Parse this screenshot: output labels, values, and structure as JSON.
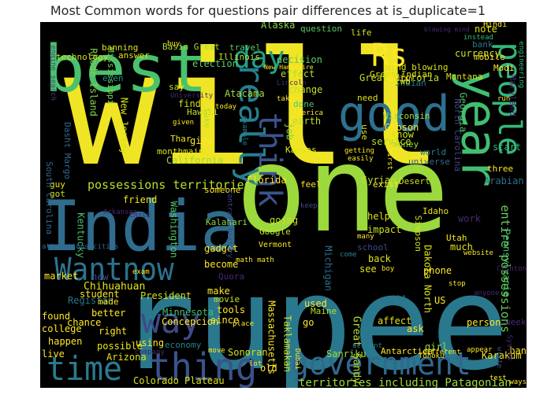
{
  "title": "Most Common words for questions pair differences at is_duplicate=1",
  "colors": {
    "background": "#000000",
    "palette": [
      "#fde725",
      "#b5de2b",
      "#6ece58",
      "#35b779",
      "#1f9e89",
      "#26828e",
      "#31688e",
      "#3e4989",
      "#482878",
      "#440154"
    ]
  },
  "words": [
    {
      "text": "will",
      "color": "#f0e524"
    },
    {
      "text": "one",
      "color": "#9bd93c"
    },
    {
      "text": "rupee",
      "color": "#2a788e"
    },
    {
      "text": "best",
      "color": "#4ac16d"
    },
    {
      "text": "India",
      "color": "#2f6c8e"
    },
    {
      "text": "good",
      "color": "#2c718e"
    },
    {
      "text": "government",
      "color": "#31688e"
    },
    {
      "text": "time",
      "color": "#2a7b8e"
    },
    {
      "text": "thing",
      "color": "#3b528b"
    },
    {
      "text": "Wantnow",
      "color": "#2c738e"
    },
    {
      "text": "way",
      "color": "#3e4a89"
    },
    {
      "text": "year",
      "color": "#42be71"
    },
    {
      "text": "people",
      "color": "#35b779"
    },
    {
      "text": "really",
      "color": "#277f8e"
    },
    {
      "text": "think",
      "color": "#3a548c"
    },
    {
      "text": "day",
      "color": "#1fa088"
    },
    {
      "text": "Rs",
      "color": "#fde725"
    },
    {
      "text": "possessions territories",
      "color": "#b5de2b"
    },
    {
      "text": "territories including Patagonian",
      "color": "#9fda3a"
    },
    {
      "text": "entire possessions",
      "color": "#6ccd5a"
    },
    {
      "text": "Great Victoria",
      "color": "#c2df23"
    },
    {
      "text": "Great Sandy",
      "color": "#b8de29"
    },
    {
      "text": "Dakota North",
      "color": "#dde318"
    },
    {
      "text": "Chihuahuan",
      "color": "#e2e418"
    },
    {
      "text": "Concepcion",
      "color": "#fde725"
    },
    {
      "text": "Colorado Plateau",
      "color": "#d8e219"
    },
    {
      "text": "Arizona",
      "color": "#dfe318"
    },
    {
      "text": "possible",
      "color": "#eae51a"
    },
    {
      "text": "Sonoran",
      "color": "#d2e21b"
    },
    {
      "text": "Sanriku",
      "color": "#a0da39"
    },
    {
      "text": "Antarctica",
      "color": "#fde725"
    },
    {
      "text": "Florida",
      "color": "#fde725"
    },
    {
      "text": "Basin Great",
      "color": "#a8db34"
    },
    {
      "text": "Alaska",
      "color": "#8bd646"
    },
    {
      "text": "Atacama",
      "color": "#a5db36"
    },
    {
      "text": "Hawaii",
      "color": "#c0df25"
    },
    {
      "text": "Thar",
      "color": "#efe51c"
    },
    {
      "text": "California",
      "color": "#a0da39"
    },
    {
      "text": "Kalahari",
      "color": "#8ed645"
    },
    {
      "text": "Washington",
      "color": "#52c569"
    },
    {
      "text": "Minnesota",
      "color": "#44bf70"
    },
    {
      "text": "Kentucky",
      "color": "#46c06f"
    },
    {
      "text": "Wisconsin",
      "color": "#a2da37"
    },
    {
      "text": "Gibson",
      "color": "#fde725"
    },
    {
      "text": "Mississippi",
      "color": "#75d054"
    },
    {
      "text": "Rhode Island",
      "color": "#84d44b"
    },
    {
      "text": "Montana",
      "color": "#dde318"
    },
    {
      "text": "Georgia",
      "color": "#4ec36b"
    },
    {
      "text": "Pennsylvania",
      "color": "#4ac16d"
    },
    {
      "text": "Michigan",
      "color": "#2e6d8e"
    },
    {
      "text": "Karakum",
      "color": "#f1e51d"
    },
    {
      "text": "Simpson",
      "color": "#c8e020"
    },
    {
      "text": "Utah",
      "color": "#f6e620"
    },
    {
      "text": "Idaho",
      "color": "#e7e419"
    },
    {
      "text": "Desert",
      "color": "#cde11d"
    },
    {
      "text": "Arabian",
      "color": "#2d708e"
    },
    {
      "text": "Syrian",
      "color": "#c0df25"
    },
    {
      "text": "Kansas",
      "color": "#dde318"
    },
    {
      "text": "Maine",
      "color": "#b5de2b"
    },
    {
      "text": "Massachusetts",
      "color": "#fde725"
    },
    {
      "text": "Taklamakan",
      "color": "#d5e21a"
    },
    {
      "text": "Registan",
      "color": "#2b748e"
    },
    {
      "text": "Google",
      "color": "#c5e021"
    },
    {
      "text": "Vermont",
      "color": "#fde725"
    },
    {
      "text": "Modi",
      "color": "#fde725"
    },
    {
      "text": "Indian",
      "color": "#2a788e"
    },
    {
      "text": "mind blowing",
      "color": "#dae319"
    },
    {
      "text": "Great Indian",
      "color": "#dde318"
    },
    {
      "text": "currency",
      "color": "#c8e020"
    },
    {
      "text": "mobile",
      "color": "#fde725"
    },
    {
      "text": "question",
      "color": "#5cc863"
    },
    {
      "text": "life",
      "color": "#d2e21b"
    },
    {
      "text": "note",
      "color": "#dde318"
    },
    {
      "text": "bank",
      "color": "#2a788e"
    },
    {
      "text": "election",
      "color": "#5ec962"
    },
    {
      "text": "decision",
      "color": "#5ec962"
    },
    {
      "text": "effect",
      "color": "#b0dd2f"
    },
    {
      "text": "change",
      "color": "#c0df25"
    },
    {
      "text": "done",
      "color": "#52c569"
    },
    {
      "text": "earth",
      "color": "#b8de29"
    },
    {
      "text": "job",
      "color": "#84d44b"
    },
    {
      "text": "know",
      "color": "#d5e21a"
    },
    {
      "text": "money",
      "color": "#a2da37"
    },
    {
      "text": "service",
      "color": "#b5de2b"
    },
    {
      "text": "world",
      "color": "#277f8e"
    },
    {
      "text": "universe",
      "color": "#31688e"
    },
    {
      "text": "start",
      "color": "#35b779"
    },
    {
      "text": "three",
      "color": "#fde725"
    },
    {
      "text": "exist",
      "color": "#fde725"
    },
    {
      "text": "feel",
      "color": "#fde725"
    },
    {
      "text": "make",
      "color": "#fde725"
    },
    {
      "text": "movie",
      "color": "#c8e020"
    },
    {
      "text": "become",
      "color": "#fde725"
    },
    {
      "text": "gadget",
      "color": "#fde725"
    },
    {
      "text": "someone",
      "color": "#fde725"
    },
    {
      "text": "friend",
      "color": "#f1e51d"
    },
    {
      "text": "give",
      "color": "#fde725"
    },
    {
      "text": "take",
      "color": "#b8de29"
    },
    {
      "text": "find",
      "color": "#d0e11c"
    },
    {
      "text": "say",
      "color": "#c8e020"
    },
    {
      "text": "monthmain",
      "color": "#dae319"
    },
    {
      "text": "banning",
      "color": "#dde318"
    },
    {
      "text": "answer",
      "color": "#e5e419"
    },
    {
      "text": "technology",
      "color": "#d0e11c"
    },
    {
      "text": "Illinois",
      "color": "#c0df25"
    },
    {
      "text": "travel",
      "color": "#5ec962"
    },
    {
      "text": "two",
      "color": "#c5e021"
    },
    {
      "text": "need",
      "color": "#d8e219"
    },
    {
      "text": "use",
      "color": "#dde318"
    },
    {
      "text": "guy",
      "color": "#e5e419"
    },
    {
      "text": "got",
      "color": "#d0e11c"
    },
    {
      "text": "even",
      "color": "#1f988b"
    },
    {
      "text": "New Jersey",
      "color": "#d2e21b"
    },
    {
      "text": "Dasht Margo",
      "color": "#31688e"
    },
    {
      "text": "South Carolina",
      "color": "#31688e"
    },
    {
      "text": "North Carolina",
      "color": "#3e4989"
    },
    {
      "text": "Maryland",
      "color": "#482878"
    },
    {
      "text": "help",
      "color": "#d5e21a"
    },
    {
      "text": "impact",
      "color": "#c5e021"
    },
    {
      "text": "school",
      "color": "#3e4989"
    },
    {
      "text": "back",
      "color": "#dde318"
    },
    {
      "text": "see",
      "color": "#dde318"
    },
    {
      "text": "phone",
      "color": "#fde725"
    },
    {
      "text": "much",
      "color": "#dde318"
    },
    {
      "text": "work",
      "color": "#482878"
    },
    {
      "text": "used",
      "color": "#fde725"
    },
    {
      "text": "still",
      "color": "#2c718e"
    },
    {
      "text": "US",
      "color": "#fde725"
    },
    {
      "text": "affect",
      "color": "#dde318"
    },
    {
      "text": "ask",
      "color": "#fde725"
    },
    {
      "text": "person",
      "color": "#fde725"
    },
    {
      "text": "week",
      "color": "#482878"
    },
    {
      "text": "girl",
      "color": "#a2da37"
    },
    {
      "text": "ban",
      "color": "#fde725"
    },
    {
      "text": "market",
      "color": "#fde725"
    },
    {
      "text": "new",
      "color": "#3e4989"
    },
    {
      "text": "student",
      "color": "#fde725"
    },
    {
      "text": "President",
      "color": "#d0e11c"
    },
    {
      "text": "better",
      "color": "#fde725"
    },
    {
      "text": "found",
      "color": "#fde725"
    },
    {
      "text": "chance",
      "color": "#fde725"
    },
    {
      "text": "college",
      "color": "#fde725"
    },
    {
      "text": "right",
      "color": "#fde725"
    },
    {
      "text": "happen",
      "color": "#fde725"
    },
    {
      "text": "live",
      "color": "#fde725"
    },
    {
      "text": "using",
      "color": "#fde725"
    },
    {
      "text": "tools",
      "color": "#fde725"
    },
    {
      "text": "since",
      "color": "#fde725"
    },
    {
      "text": "go",
      "color": "#fde725"
    },
    {
      "text": "old",
      "color": "#fde725"
    },
    {
      "text": "made",
      "color": "#fde725"
    },
    {
      "text": "economy",
      "color": "#26828e"
    },
    {
      "text": "Quora",
      "color": "#482878"
    },
    {
      "text": "going",
      "color": "#c8e020"
    },
    {
      "text": "Hindi",
      "color": "#fde725"
    },
    {
      "text": "instead",
      "color": "#35b779"
    },
    {
      "text": "blowing mind",
      "color": "#482878"
    },
    {
      "text": "Indian",
      "color": "#fde725"
    },
    {
      "text": "New Hampshire",
      "color": "#fde725"
    },
    {
      "text": "engine search",
      "color": "#3e4989"
    },
    {
      "text": "engineering",
      "color": "#35b779"
    },
    {
      "text": "attractions cities",
      "color": "#31688e"
    },
    {
      "text": "Tohoku",
      "color": "#fde725"
    },
    {
      "text": "Clinton",
      "color": "#482878"
    },
    {
      "text": "account",
      "color": "#26828e"
    },
    {
      "text": "different",
      "color": "#fde725"
    },
    {
      "text": "System",
      "color": "#482878"
    },
    {
      "text": "write",
      "color": "#3e4989"
    },
    {
      "text": "anyone",
      "color": "#482878"
    },
    {
      "text": "website",
      "color": "#fde725"
    },
    {
      "text": "stop",
      "color": "#fde725"
    },
    {
      "text": "contrast history",
      "color": "#3e4989"
    },
    {
      "text": "math math",
      "color": "#fde725"
    },
    {
      "text": "exam",
      "color": "#fde725"
    },
    {
      "text": "Arkansas",
      "color": "#482878"
    },
    {
      "text": "Chile",
      "color": "#482878"
    },
    {
      "text": "keep",
      "color": "#3e4989"
    },
    {
      "text": "many",
      "color": "#fde725"
    },
    {
      "text": "come",
      "color": "#26828e"
    },
    {
      "text": "boy",
      "color": "#fde725"
    },
    {
      "text": "move",
      "color": "#fde725"
    },
    {
      "text": "lot",
      "color": "#fde725"
    },
    {
      "text": "company",
      "color": "#482878"
    },
    {
      "text": "Dubai",
      "color": "#fde725"
    },
    {
      "text": "America",
      "color": "#fde725"
    },
    {
      "text": "example",
      "color": "#26828e"
    },
    {
      "text": "getting",
      "color": "#fde725"
    },
    {
      "text": "easily",
      "color": "#fde725"
    },
    {
      "text": "first",
      "color": "#fde725"
    },
    {
      "text": "given",
      "color": "#fde725"
    },
    {
      "text": "University",
      "color": "#482878"
    },
    {
      "text": "buy",
      "color": "#fde725"
    },
    {
      "text": "today",
      "color": "#fde725"
    },
    {
      "text": "Lincoln",
      "color": "#482878"
    },
    {
      "text": "taken",
      "color": "#fde725"
    },
    {
      "text": "appear",
      "color": "#fde725"
    },
    {
      "text": "run",
      "color": "#fde725"
    },
    {
      "text": "place",
      "color": "#fde725"
    },
    {
      "text": "ways",
      "color": "#fde725"
    },
    {
      "text": "test",
      "color": "#fde725"
    }
  ]
}
